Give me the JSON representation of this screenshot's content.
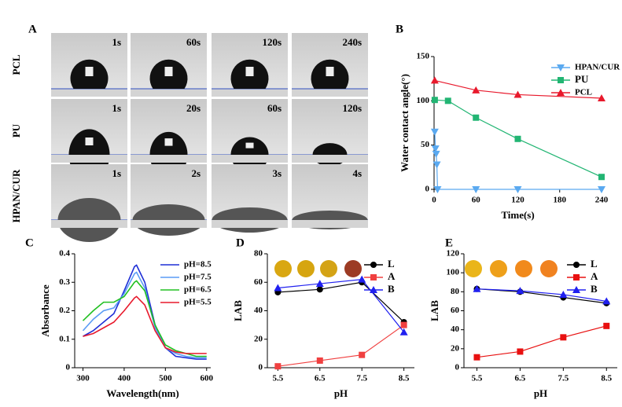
{
  "panel_a": {
    "label": "A",
    "rows": [
      {
        "name": "PCL",
        "times": [
          "1s",
          "60s",
          "120s",
          "240s"
        ]
      },
      {
        "name": "PU",
        "times": [
          "1s",
          "20s",
          "60s",
          "120s"
        ]
      },
      {
        "name": "HPAN/CUR",
        "times": [
          "1s",
          "2s",
          "3s",
          "4s"
        ]
      }
    ]
  },
  "chart_data": [
    {
      "type": "line",
      "label": "B",
      "xlabel": "Time(s)",
      "ylabel": "Water contact angle(°)",
      "xlim": [
        0,
        240
      ],
      "xticks": [
        0,
        60,
        120,
        180,
        240
      ],
      "ylim": [
        0,
        150
      ],
      "yticks": [
        0,
        50,
        100,
        150
      ],
      "legend": "upper right",
      "series": [
        {
          "name": "HPAN/CUR",
          "color": "#5aa9f0",
          "marker": "triangle-down",
          "x": [
            1,
            2,
            3,
            4,
            5,
            60,
            120,
            240
          ],
          "values": [
            65,
            46,
            40,
            28,
            0,
            0,
            0,
            0
          ]
        },
        {
          "name": "PU",
          "color": "#22b573",
          "marker": "square",
          "x": [
            1,
            20,
            60,
            120,
            240
          ],
          "values": [
            101,
            100,
            81,
            57,
            14
          ]
        },
        {
          "name": "PCL",
          "color": "#e8192c",
          "marker": "triangle-up",
          "x": [
            1,
            60,
            120,
            240
          ],
          "values": [
            123,
            112,
            107,
            103
          ]
        }
      ]
    },
    {
      "type": "line",
      "label": "C",
      "xlabel": "Wavelength(nm)",
      "ylabel": "Absorbance",
      "xlim": [
        280,
        610
      ],
      "xticks": [
        300,
        400,
        500,
        600
      ],
      "ylim": [
        0,
        0.4
      ],
      "yticks": [
        0,
        0.1,
        0.2,
        0.3,
        0.4
      ],
      "legend": "upper right",
      "series": [
        {
          "name": "pH=8.5",
          "color": "#1f2fd6",
          "marker": null,
          "x": [
            300,
            325,
            350,
            375,
            400,
            425,
            430,
            450,
            475,
            500,
            525,
            550,
            575,
            600
          ],
          "values": [
            0.11,
            0.13,
            0.16,
            0.19,
            0.27,
            0.355,
            0.36,
            0.3,
            0.15,
            0.07,
            0.04,
            0.035,
            0.03,
            0.03
          ]
        },
        {
          "name": "pH=7.5",
          "color": "#5a9cf5",
          "marker": null,
          "x": [
            300,
            325,
            350,
            375,
            400,
            425,
            430,
            450,
            475,
            500,
            525,
            550,
            575,
            600
          ],
          "values": [
            0.13,
            0.17,
            0.2,
            0.21,
            0.26,
            0.33,
            0.335,
            0.28,
            0.14,
            0.07,
            0.05,
            0.04,
            0.035,
            0.035
          ]
        },
        {
          "name": "pH=6.5",
          "color": "#22c022",
          "marker": null,
          "x": [
            300,
            325,
            350,
            375,
            400,
            425,
            430,
            450,
            475,
            500,
            525,
            550,
            575,
            600
          ],
          "values": [
            0.165,
            0.2,
            0.23,
            0.23,
            0.25,
            0.3,
            0.305,
            0.27,
            0.15,
            0.08,
            0.06,
            0.05,
            0.04,
            0.04
          ]
        },
        {
          "name": "pH=5.5",
          "color": "#e8192c",
          "marker": null,
          "x": [
            300,
            325,
            350,
            375,
            400,
            425,
            430,
            450,
            475,
            500,
            525,
            550,
            575,
            600
          ],
          "values": [
            0.11,
            0.12,
            0.14,
            0.16,
            0.2,
            0.245,
            0.25,
            0.22,
            0.13,
            0.07,
            0.055,
            0.05,
            0.05,
            0.05
          ]
        }
      ]
    },
    {
      "type": "line",
      "label": "D",
      "xlabel": "pH",
      "ylabel": "LAB",
      "xlim": [
        5.25,
        8.75
      ],
      "xticks": [
        5.5,
        6.5,
        7.5,
        8.5
      ],
      "ylim": [
        0,
        80
      ],
      "yticks": [
        0,
        20,
        40,
        60,
        80
      ],
      "legend": "upper right",
      "series": [
        {
          "name": "L",
          "color": "#000000",
          "marker": "circle",
          "x": [
            5.5,
            6.5,
            7.5,
            8.5
          ],
          "values": [
            53,
            55,
            60,
            32
          ]
        },
        {
          "name": "A",
          "color": "#f04040",
          "marker": "square",
          "x": [
            5.5,
            6.5,
            7.5,
            8.5
          ],
          "values": [
            1,
            5,
            9,
            30
          ]
        },
        {
          "name": "B",
          "color": "#2020f0",
          "marker": "triangle-up",
          "x": [
            5.5,
            6.5,
            7.5,
            8.5
          ],
          "values": [
            56,
            59,
            62,
            25
          ]
        }
      ]
    },
    {
      "type": "line",
      "label": "E",
      "xlabel": "pH",
      "ylabel": "LAB",
      "xlim": [
        5.2,
        8.75
      ],
      "xticks": [
        5.5,
        6.5,
        7.5,
        8.5
      ],
      "ylim": [
        0,
        120
      ],
      "yticks": [
        0,
        20,
        40,
        60,
        80,
        100,
        120
      ],
      "legend": "upper right",
      "series": [
        {
          "name": "L",
          "color": "#000000",
          "marker": "circle",
          "x": [
            5.5,
            6.5,
            7.5,
            8.5
          ],
          "values": [
            83,
            80,
            74,
            68
          ]
        },
        {
          "name": "A",
          "color": "#e81010",
          "marker": "square",
          "x": [
            5.5,
            6.5,
            7.5,
            8.5
          ],
          "values": [
            11,
            17,
            32,
            44
          ]
        },
        {
          "name": "B",
          "color": "#2020f0",
          "marker": "triangle-up",
          "x": [
            5.5,
            6.5,
            7.5,
            8.5
          ],
          "values": [
            83,
            81,
            77,
            70
          ]
        }
      ]
    }
  ]
}
